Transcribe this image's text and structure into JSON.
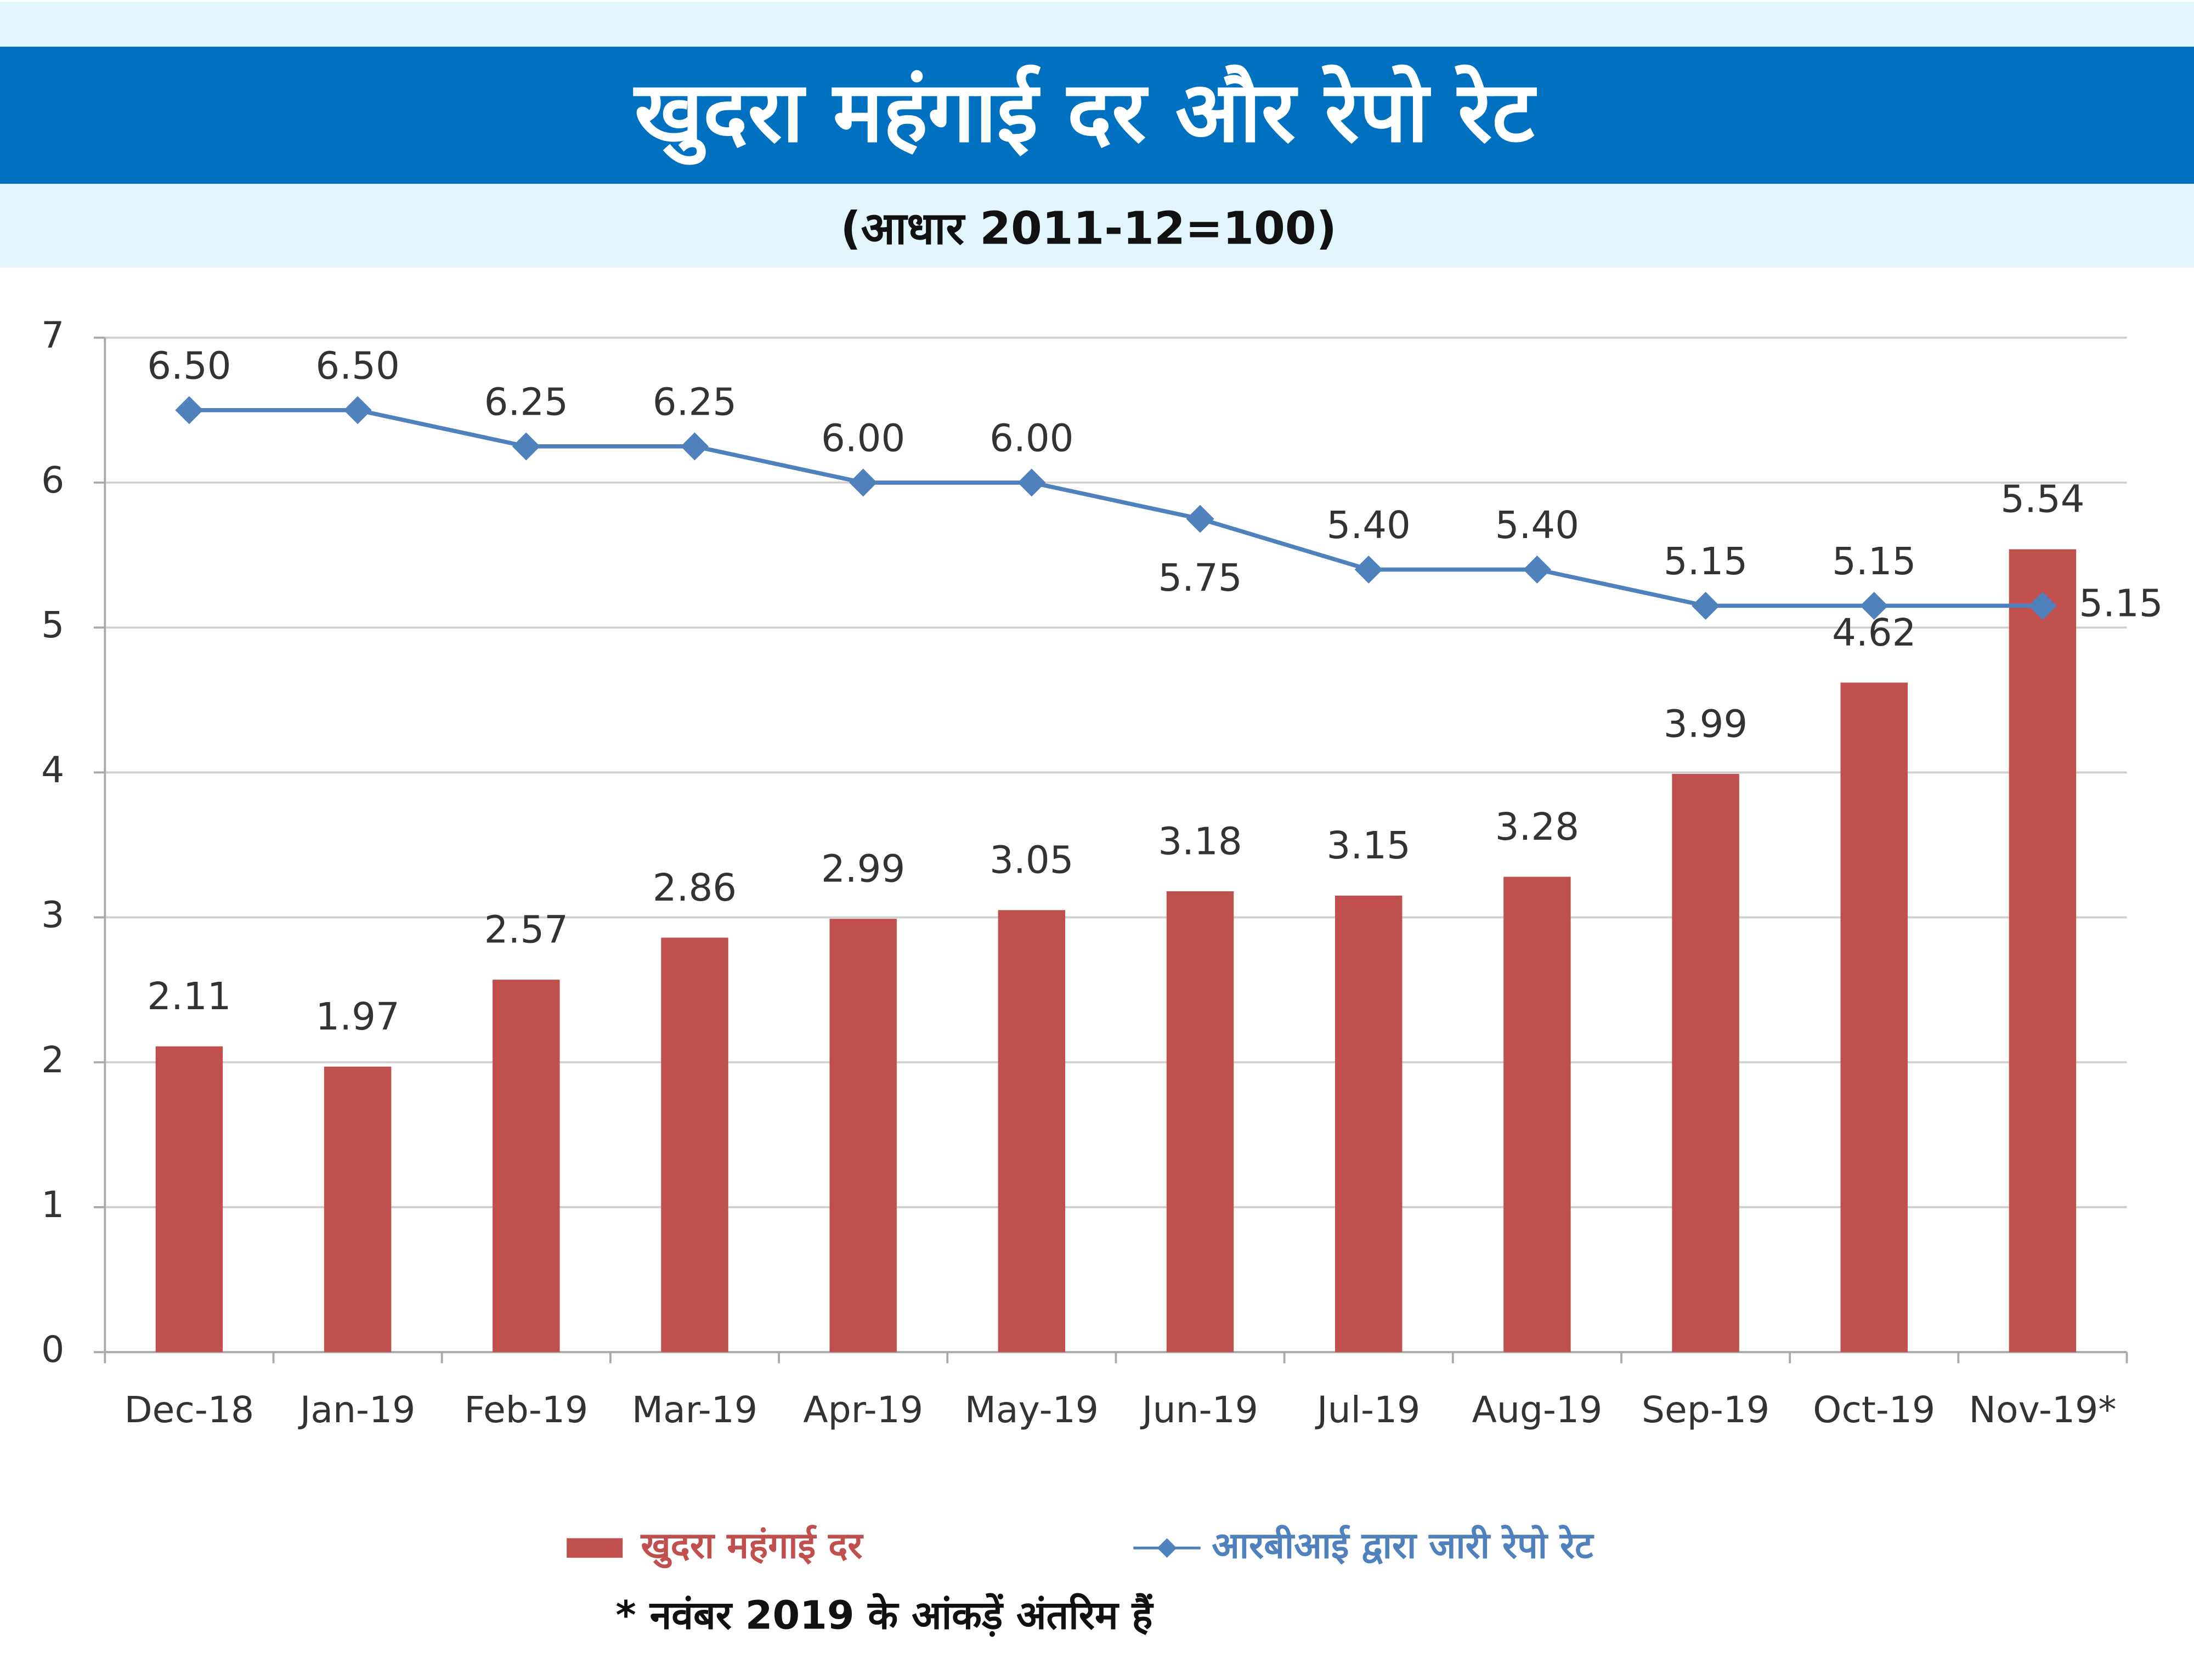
{
  "chart_data": {
    "type": "bar",
    "title": "खुदरा महंगाई दर और रेपो रेट",
    "subtitle": "(आधार 2011-12=100)",
    "footnote": "* नवंबर 2019 के आंकड़ें अंतरिम हैं",
    "categories": [
      "Dec-18",
      "Jan-19",
      "Feb-19",
      "Mar-19",
      "Apr-19",
      "May-19",
      "Jun-19",
      "Jul-19",
      "Aug-19",
      "Sep-19",
      "Oct-19",
      "Nov-19*"
    ],
    "series": [
      {
        "name": "खुदरा महंगाई दर",
        "type": "bar",
        "color": "#c0504d",
        "values": [
          2.11,
          1.97,
          2.57,
          2.86,
          2.99,
          3.05,
          3.18,
          3.15,
          3.28,
          3.99,
          4.62,
          5.54
        ]
      },
      {
        "name": "आरबीआई द्वारा जारी रेपो रेट",
        "type": "line",
        "color": "#4f81bd",
        "values": [
          6.5,
          6.5,
          6.25,
          6.25,
          6,
          6,
          5.75,
          5.4,
          5.4,
          5.15,
          5.15,
          5.15
        ],
        "value_labels": [
          "6.50",
          "6.50",
          "6.25",
          "6.25",
          "6.00",
          "6.00",
          "5.75",
          "5.40",
          "5.40",
          "5.15",
          "5.15",
          "5.15"
        ]
      }
    ],
    "ylim": [
      0,
      7
    ],
    "yticks": [
      0,
      1,
      2,
      3,
      4,
      5,
      6,
      7
    ],
    "grid": true
  }
}
